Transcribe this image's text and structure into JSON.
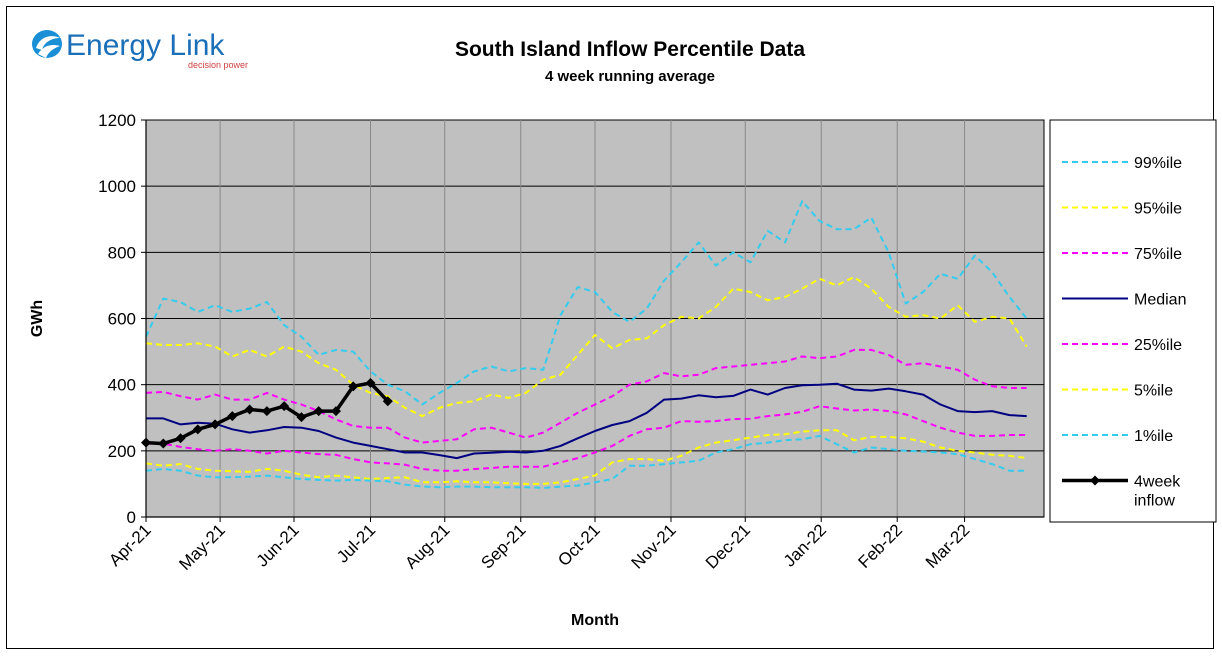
{
  "header": {
    "logo_text": "Energy Link",
    "logo_tagline": "decision power"
  },
  "chart_data": {
    "type": "line",
    "title": "South Island Inflow Percentile Data",
    "subtitle": "4 week running average",
    "xlabel": "Month",
    "ylabel": "GWh",
    "ylim": [
      0,
      1200
    ],
    "yticks": [
      0,
      200,
      400,
      600,
      800,
      1000,
      1200
    ],
    "xlim": [
      0,
      52
    ],
    "months": [
      "Apr-21",
      "May-21",
      "Jun-21",
      "Jul-21",
      "Aug-21",
      "Sep-21",
      "Oct-21",
      "Nov-21",
      "Dec-21",
      "Jan-22",
      "Feb-22",
      "Mar-22"
    ],
    "month_week": [
      0,
      4.29,
      8.57,
      13,
      17.3,
      21.7,
      26,
      30.4,
      34.7,
      39.1,
      43.5,
      47.4
    ],
    "grid": true,
    "legend_position": "right",
    "colors": {
      "plot_bg": "#c0c0c0",
      "p99": "#33ccee",
      "p95": "#ffff00",
      "p75": "#ff00ff",
      "median": "#000080",
      "p25": "#ff00ff",
      "p5": "#ffff00",
      "p1": "#33ccee",
      "inflow": "#000000"
    },
    "series": [
      {
        "key": "p99",
        "name": "99%ile",
        "style": "dashed",
        "values": [
          545,
          660,
          650,
          620,
          640,
          620,
          630,
          650,
          580,
          545,
          490,
          505,
          500,
          440,
          400,
          380,
          340,
          375,
          405,
          440,
          455,
          440,
          450,
          445,
          610,
          695,
          680,
          620,
          590,
          630,
          715,
          770,
          830,
          760,
          800,
          770,
          865,
          830,
          955,
          895,
          870,
          870,
          905,
          800,
          645,
          680,
          735,
          720,
          790,
          740,
          665,
          600
        ]
      },
      {
        "key": "p95",
        "name": "95%ile",
        "style": "dashed",
        "values": [
          525,
          520,
          520,
          525,
          515,
          485,
          505,
          485,
          515,
          500,
          465,
          445,
          400,
          375,
          365,
          330,
          305,
          330,
          345,
          350,
          370,
          360,
          375,
          415,
          430,
          490,
          550,
          510,
          535,
          540,
          580,
          605,
          600,
          635,
          690,
          680,
          655,
          665,
          690,
          720,
          700,
          725,
          690,
          635,
          605,
          610,
          600,
          640,
          590,
          605,
          600,
          515
        ]
      },
      {
        "key": "p75",
        "name": "75%ile",
        "style": "dashed",
        "values": [
          375,
          378,
          365,
          355,
          370,
          355,
          355,
          375,
          355,
          340,
          320,
          295,
          275,
          270,
          270,
          240,
          225,
          230,
          235,
          265,
          270,
          255,
          240,
          255,
          285,
          315,
          340,
          365,
          400,
          410,
          435,
          425,
          430,
          450,
          455,
          460,
          465,
          470,
          485,
          480,
          485,
          505,
          505,
          490,
          460,
          465,
          455,
          445,
          415,
          395,
          390,
          390
        ]
      },
      {
        "key": "median",
        "name": "Median",
        "style": "solid",
        "values": [
          298,
          298,
          280,
          285,
          282,
          265,
          255,
          262,
          272,
          270,
          260,
          240,
          225,
          215,
          205,
          195,
          195,
          187,
          178,
          192,
          194,
          197,
          195,
          200,
          215,
          238,
          260,
          278,
          290,
          315,
          355,
          358,
          368,
          362,
          366,
          385,
          370,
          390,
          398,
          400,
          403,
          385,
          382,
          388,
          380,
          370,
          340,
          320,
          317,
          320,
          308,
          305
        ]
      },
      {
        "key": "p25",
        "name": "25%ile",
        "style": "dashed",
        "values": [
          222,
          222,
          212,
          205,
          200,
          205,
          200,
          192,
          200,
          195,
          190,
          188,
          175,
          165,
          162,
          158,
          145,
          140,
          140,
          145,
          148,
          152,
          152,
          152,
          165,
          178,
          195,
          215,
          245,
          265,
          270,
          290,
          288,
          290,
          296,
          297,
          305,
          310,
          318,
          335,
          328,
          322,
          325,
          320,
          310,
          290,
          270,
          255,
          245,
          245,
          248,
          248
        ]
      },
      {
        "key": "p5",
        "name": "5%ile",
        "style": "dashed",
        "values": [
          162,
          155,
          160,
          145,
          140,
          138,
          137,
          145,
          140,
          128,
          120,
          125,
          120,
          115,
          118,
          120,
          105,
          105,
          108,
          105,
          105,
          102,
          100,
          100,
          105,
          115,
          125,
          165,
          175,
          175,
          170,
          185,
          210,
          225,
          232,
          240,
          248,
          250,
          258,
          262,
          262,
          232,
          242,
          242,
          238,
          228,
          210,
          200,
          195,
          188,
          185,
          178
        ]
      },
      {
        "key": "p1",
        "name": "1%ile",
        "style": "dashed",
        "values": [
          140,
          145,
          140,
          125,
          120,
          120,
          122,
          125,
          120,
          115,
          112,
          110,
          112,
          110,
          108,
          98,
          92,
          90,
          92,
          92,
          90,
          90,
          90,
          88,
          92,
          95,
          105,
          115,
          155,
          155,
          160,
          165,
          170,
          195,
          205,
          220,
          225,
          232,
          235,
          245,
          220,
          195,
          210,
          205,
          200,
          198,
          195,
          190,
          175,
          160,
          140,
          140
        ]
      },
      {
        "key": "inflow",
        "name": "4week inflow",
        "style": "markers",
        "x": [
          0,
          1,
          2,
          3,
          4,
          5,
          6,
          7,
          8,
          9,
          10,
          11,
          12,
          13,
          14
        ],
        "values": [
          225,
          222,
          238,
          265,
          280,
          305,
          325,
          320,
          335,
          302,
          320,
          320,
          395,
          405,
          350
        ]
      }
    ]
  }
}
